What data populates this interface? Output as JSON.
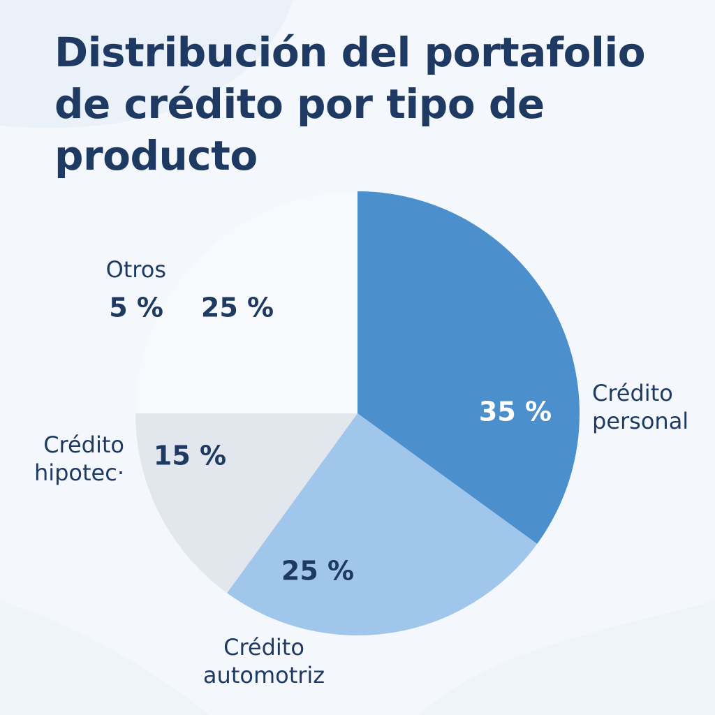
{
  "chart_data": {
    "type": "pie",
    "title": "Distribución del portafolio de crédito por tipo de producto",
    "slices": [
      {
        "label_lines": [
          "Crédito",
          "personal"
        ],
        "value": 35,
        "value_label": "35 %",
        "color": "#4b8fcd"
      },
      {
        "label_lines": [
          "Crédito",
          "automotriz"
        ],
        "value": 25,
        "value_label": "25 %",
        "color": "#a0c6eb"
      },
      {
        "label_lines": [
          "Crédito",
          "hipotec·"
        ],
        "value": 15,
        "value_label": "15 %",
        "color": "#e2e7ee"
      },
      {
        "label_lines": [
          "Otros"
        ],
        "value": 25,
        "value_label": "25 %",
        "color": "#f7f9fc"
      }
    ],
    "extra_annotation": "5 %",
    "text_color": "#1e3a63",
    "grid": false,
    "legend": "none"
  }
}
